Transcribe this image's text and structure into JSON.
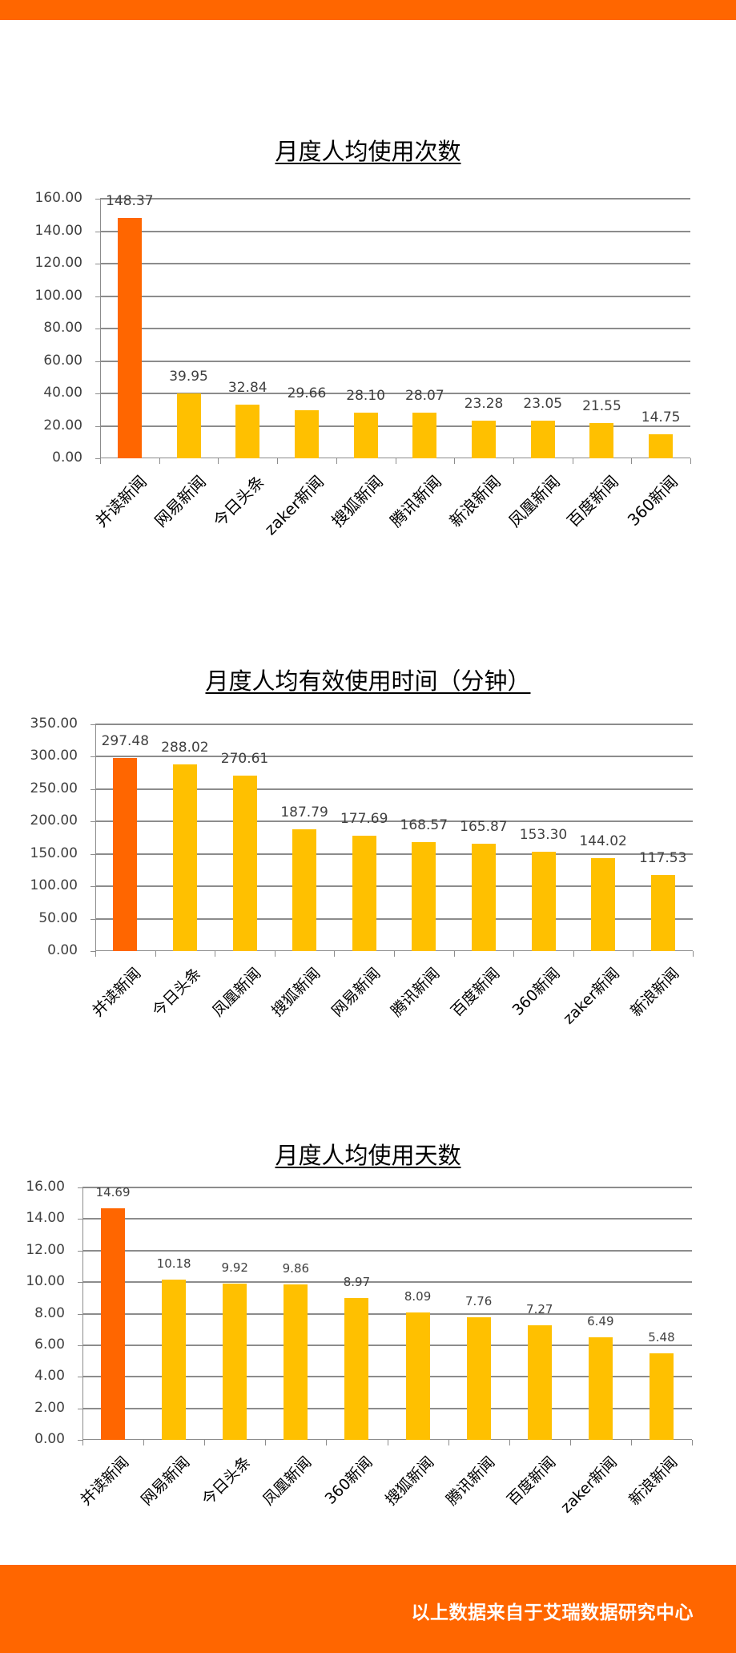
{
  "header": {
    "bar_color": "#FF6600"
  },
  "footer": {
    "text": "以上数据来自于艾瑞数据研究中心",
    "bar_color": "#FF6600"
  },
  "colors": {
    "highlight": "#FF6600",
    "default": "#FFC000",
    "grid": "#8C8C8C",
    "label": "#404040"
  },
  "chart_data": [
    {
      "type": "bar",
      "title": "月度人均使用次数",
      "xlabel": "",
      "ylabel": "",
      "ylim": [
        0,
        160
      ],
      "yticks": [
        "0.00",
        "20.00",
        "40.00",
        "60.00",
        "80.00",
        "100.00",
        "120.00",
        "140.00",
        "160.00"
      ],
      "grid": true,
      "legend": "none",
      "categories": [
        "并读新闻",
        "网易新闻",
        "今日头条",
        "zaker新闻",
        "搜狐新闻",
        "腾讯新闻",
        "新浪新闻",
        "凤凰新闻",
        "百度新闻",
        "360新闻"
      ],
      "values": [
        148.37,
        39.95,
        32.84,
        29.66,
        28.1,
        28.07,
        23.28,
        23.05,
        21.55,
        14.75
      ],
      "value_labels": [
        "148.37",
        "39.95",
        "32.84",
        "29.66",
        "28.10",
        "28.07",
        "23.28",
        "23.05",
        "21.55",
        "14.75"
      ],
      "highlight_index": 0
    },
    {
      "type": "bar",
      "title": "月度人均有效使用时间（分钟）",
      "xlabel": "",
      "ylabel": "",
      "ylim": [
        0,
        350
      ],
      "yticks": [
        "0.00",
        "50.00",
        "100.00",
        "150.00",
        "200.00",
        "250.00",
        "300.00",
        "350.00"
      ],
      "grid": true,
      "legend": "none",
      "categories": [
        "并读新闻",
        "今日头条",
        "凤凰新闻",
        "搜狐新闻",
        "网易新闻",
        "腾讯新闻",
        "百度新闻",
        "360新闻",
        "zaker新闻",
        "新浪新闻"
      ],
      "values": [
        297.48,
        288.02,
        270.61,
        187.79,
        177.69,
        168.57,
        165.87,
        153.3,
        144.02,
        117.53
      ],
      "value_labels": [
        "297.48",
        "288.02",
        "270.61",
        "187.79",
        "177.69",
        "168.57",
        "165.87",
        "153.30",
        "144.02",
        "117.53"
      ],
      "highlight_index": 0
    },
    {
      "type": "bar",
      "title": "月度人均使用天数",
      "xlabel": "",
      "ylabel": "",
      "ylim": [
        0,
        16
      ],
      "yticks": [
        "0.00",
        "2.00",
        "4.00",
        "6.00",
        "8.00",
        "10.00",
        "12.00",
        "14.00",
        "16.00"
      ],
      "grid": true,
      "legend": "none",
      "categories": [
        "并读新闻",
        "网易新闻",
        "今日头条",
        "凤凰新闻",
        "360新闻",
        "搜狐新闻",
        "腾讯新闻",
        "百度新闻",
        "zaker新闻",
        "新浪新闻"
      ],
      "values": [
        14.69,
        10.18,
        9.92,
        9.86,
        8.97,
        8.09,
        7.76,
        7.27,
        6.49,
        5.48
      ],
      "value_labels": [
        "14.69",
        "10.18",
        "9.92",
        "9.86",
        "8.97",
        "8.09",
        "7.76",
        "7.27",
        "6.49",
        "5.48"
      ],
      "highlight_index": 0
    }
  ]
}
